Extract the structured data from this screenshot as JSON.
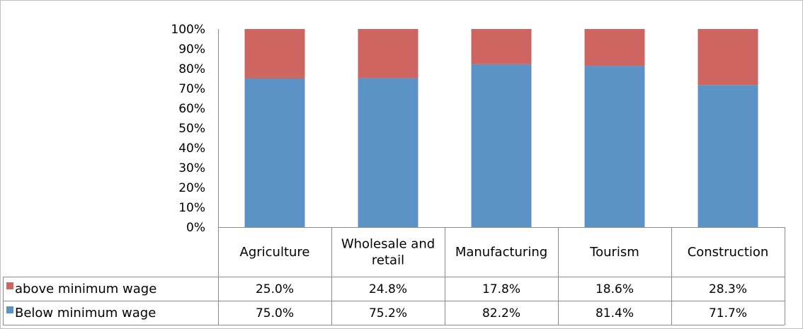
{
  "chart_data": {
    "type": "bar",
    "stacked": true,
    "percent_stacked": true,
    "categories": [
      "Agriculture",
      "Wholesale and retail",
      "Manufacturing",
      "Tourism",
      "Construction"
    ],
    "series": [
      {
        "name": "Below minimum wage",
        "values": [
          75.0,
          75.2,
          82.2,
          81.4,
          71.7
        ],
        "labels": [
          "75.0%",
          "75.2%",
          "82.2%",
          "81.4%",
          "71.7%"
        ],
        "color": "#5B93C7"
      },
      {
        "name": "above minimum wage",
        "values": [
          25.0,
          24.8,
          17.8,
          18.6,
          28.3
        ],
        "labels": [
          "25.0%",
          "24.8%",
          "17.8%",
          "18.6%",
          "28.3%"
        ],
        "color": "#CF6560"
      }
    ],
    "y_ticks": [
      "0%",
      "10%",
      "20%",
      "30%",
      "40%",
      "50%",
      "60%",
      "70%",
      "80%",
      "90%",
      "100%"
    ],
    "ylim": [
      0,
      100
    ],
    "grid": false,
    "legend": "data-table",
    "title": "",
    "xlabel": "",
    "ylabel": ""
  }
}
